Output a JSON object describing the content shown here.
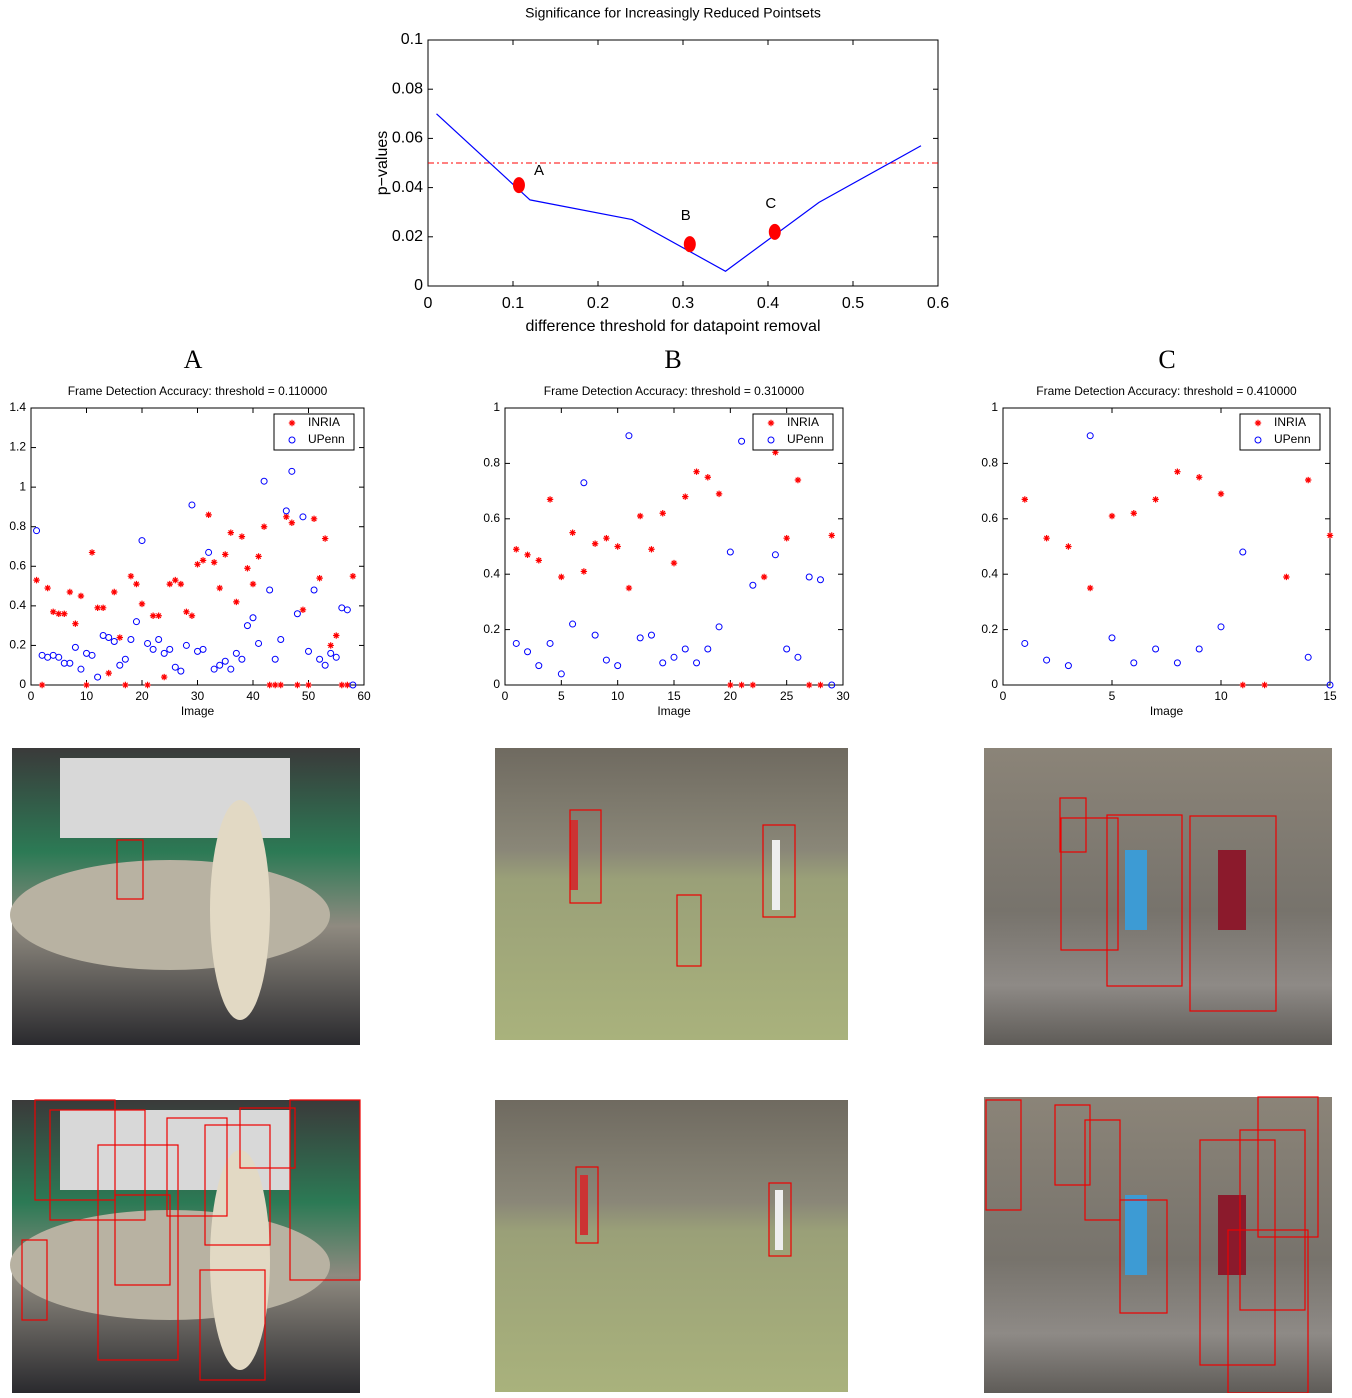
{
  "chart_data": [
    {
      "type": "line",
      "title": "Significance for Increasingly Reduced Pointsets",
      "xlabel": "difference threshold for datapoint removal",
      "ylabel": "p−values",
      "x": [
        0.01,
        0.12,
        0.24,
        0.35,
        0.46,
        0.58
      ],
      "series": [
        {
          "color": "#0000ff",
          "values": [
            0.07,
            0.035,
            0.027,
            0.006,
            0.034,
            0.057
          ]
        }
      ],
      "hline": {
        "value": 0.05,
        "color": "#ff0000"
      },
      "points": [
        {
          "label": "A",
          "x": 0.107,
          "y": 0.041
        },
        {
          "label": "B",
          "x": 0.308,
          "y": 0.017
        },
        {
          "label": "C",
          "x": 0.408,
          "y": 0.022
        }
      ],
      "points_color": "#ff0000",
      "xlim": [
        0,
        0.6
      ],
      "xticks": [
        0,
        0.1,
        0.2,
        0.3,
        0.4,
        0.5,
        0.6
      ],
      "ylim": [
        0,
        0.1
      ],
      "yticks": [
        0,
        0.02,
        0.04,
        0.06,
        0.08,
        0.1
      ]
    },
    {
      "type": "scatter",
      "heading": "A",
      "title": "Frame Detection Accuracy: threshold = 0.110000",
      "xlabel": "Image",
      "x": [
        1,
        2,
        3,
        4,
        5,
        6,
        7,
        8,
        9,
        10,
        11,
        12,
        13,
        14,
        15,
        16,
        17,
        18,
        19,
        20,
        21,
        22,
        23,
        24,
        25,
        26,
        27,
        28,
        29,
        30,
        31,
        32,
        33,
        34,
        35,
        36,
        37,
        38,
        39,
        40,
        41,
        42,
        43,
        44,
        45,
        46,
        47,
        48,
        49,
        50,
        51,
        52,
        53,
        54,
        55,
        56,
        57,
        58
      ],
      "series": [
        {
          "name": "INRIA",
          "color": "#ff0000",
          "marker": "star",
          "values": [
            0.53,
            0,
            0.49,
            0.37,
            0.36,
            0.36,
            0.47,
            0.31,
            0.45,
            0,
            0.67,
            0.39,
            0.39,
            0.06,
            0.47,
            0.24,
            0,
            0.55,
            0.51,
            0.41,
            0,
            0.35,
            0.35,
            0.04,
            0.51,
            0.53,
            0.51,
            0.37,
            0.35,
            0.61,
            0.63,
            0.86,
            0.62,
            0.49,
            0.66,
            0.77,
            0.42,
            0.75,
            0.59,
            0.51,
            0.65,
            0.8,
            0,
            0,
            0,
            0.85,
            0.82,
            0,
            0.38,
            0,
            0.84,
            0.54,
            0.74,
            0.2,
            0.25,
            0,
            0,
            0.55
          ]
        },
        {
          "name": "UPenn",
          "color": "#0000ff",
          "marker": "circle",
          "values": [
            0.78,
            0.15,
            0.14,
            0.15,
            0.14,
            0.11,
            0.11,
            0.19,
            0.08,
            0.16,
            0.15,
            0.04,
            0.25,
            0.24,
            0.22,
            0.1,
            0.13,
            0.23,
            0.32,
            0.73,
            0.21,
            0.18,
            0.23,
            0.16,
            0.18,
            0.09,
            0.07,
            0.2,
            0.91,
            0.17,
            0.18,
            0.67,
            0.08,
            0.1,
            0.12,
            0.08,
            0.16,
            0.13,
            0.3,
            0.34,
            0.21,
            1.03,
            0.48,
            0.13,
            0.23,
            0.88,
            1.08,
            0.36,
            0.85,
            0.17,
            0.48,
            0.13,
            0.1,
            0.16,
            0.14,
            0.39,
            0.38,
            0
          ]
        }
      ],
      "xlim": [
        0,
        60
      ],
      "xticks": [
        0,
        10,
        20,
        30,
        40,
        50,
        60
      ],
      "ylim": [
        0,
        1.4
      ],
      "yticks": [
        0,
        0.2,
        0.4,
        0.6,
        0.8,
        1,
        1.2,
        1.4
      ],
      "legend": "upper right"
    },
    {
      "type": "scatter",
      "heading": "B",
      "title": "Frame Detection Accuracy: threshold = 0.310000",
      "xlabel": "Image",
      "x": [
        1,
        2,
        3,
        4,
        5,
        6,
        7,
        8,
        9,
        10,
        11,
        12,
        13,
        14,
        15,
        16,
        17,
        18,
        19,
        20,
        21,
        22,
        23,
        24,
        25,
        26,
        27,
        28,
        29
      ],
      "series": [
        {
          "name": "INRIA",
          "color": "#ff0000",
          "marker": "star",
          "values": [
            0.49,
            0.47,
            0.45,
            0.67,
            0.39,
            0.55,
            0.41,
            0.51,
            0.53,
            0.5,
            0.35,
            0.61,
            0.49,
            0.62,
            0.44,
            0.68,
            0.77,
            0.75,
            0.69,
            0,
            0,
            0,
            0.39,
            0.84,
            0.53,
            0.74,
            0,
            0,
            0.54
          ]
        },
        {
          "name": "UPenn",
          "color": "#0000ff",
          "marker": "circle",
          "values": [
            0.15,
            0.12,
            0.07,
            0.15,
            0.04,
            0.22,
            0.73,
            0.18,
            0.09,
            0.07,
            0.9,
            0.17,
            0.18,
            0.08,
            0.1,
            0.13,
            0.08,
            0.13,
            0.21,
            0.48,
            0.88,
            0.36,
            null,
            0.47,
            0.13,
            0.1,
            0.39,
            0.38,
            0
          ]
        }
      ],
      "xlim": [
        0,
        30
      ],
      "xticks": [
        0,
        5,
        10,
        15,
        20,
        25,
        30
      ],
      "ylim": [
        0,
        1
      ],
      "yticks": [
        0,
        0.2,
        0.4,
        0.6,
        0.8,
        1
      ],
      "legend": "upper right"
    },
    {
      "type": "scatter",
      "heading": "C",
      "title": "Frame Detection Accuracy: threshold = 0.410000",
      "xlabel": "Image",
      "x": [
        1,
        2,
        3,
        4,
        5,
        6,
        7,
        8,
        9,
        10,
        11,
        12,
        13,
        14,
        15
      ],
      "series": [
        {
          "name": "INRIA",
          "color": "#ff0000",
          "marker": "star",
          "values": [
            0.67,
            0.53,
            0.5,
            0.35,
            0.61,
            0.62,
            0.67,
            0.77,
            0.75,
            0.69,
            0,
            0,
            0.39,
            0.74,
            0.54
          ]
        },
        {
          "name": "UPenn",
          "color": "#0000ff",
          "marker": "circle",
          "values": [
            0.15,
            0.09,
            0.07,
            0.9,
            0.17,
            0.08,
            0.13,
            0.08,
            0.13,
            0.21,
            0.48,
            null,
            null,
            0.1,
            0
          ]
        }
      ],
      "xlim": [
        0,
        15
      ],
      "xticks": [
        0,
        5,
        10,
        15
      ],
      "ylim": [
        0,
        1
      ],
      "yticks": [
        0,
        0.2,
        0.4,
        0.6,
        0.8,
        1
      ],
      "legend": "upper right"
    }
  ]
}
